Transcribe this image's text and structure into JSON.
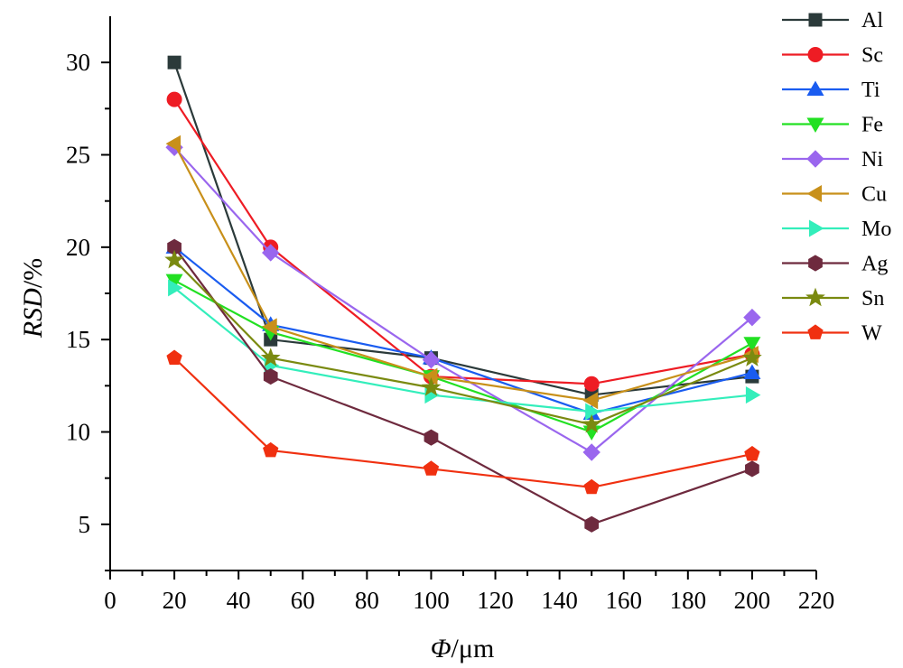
{
  "chart_data": {
    "type": "line",
    "x": [
      20,
      50,
      100,
      150,
      200
    ],
    "xlabel_var": "Φ",
    "xlabel_unit": "/μm",
    "ylabel_var": "RSD",
    "ylabel_unit": "/%",
    "xlim": [
      0,
      220
    ],
    "ylim": [
      2.5,
      32.5
    ],
    "xticks": [
      "0",
      "20",
      "40",
      "60",
      "80",
      "100",
      "120",
      "140",
      "160",
      "180",
      "200",
      "220"
    ],
    "yticks": [
      "5",
      "10",
      "15",
      "20",
      "25",
      "30"
    ],
    "grid": false,
    "legend_position": "top-right",
    "series": [
      {
        "name": "Al",
        "color": "#2b3a3a",
        "marker": "square",
        "values": [
          30,
          15,
          14,
          12,
          13
        ]
      },
      {
        "name": "Sc",
        "color": "#ee1c24",
        "marker": "circle",
        "values": [
          28,
          20,
          13,
          12.6,
          14.2
        ]
      },
      {
        "name": "Ti",
        "color": "#1a5cf0",
        "marker": "triangle-up",
        "values": [
          20,
          15.8,
          14,
          11,
          13.2
        ]
      },
      {
        "name": "Fe",
        "color": "#22e022",
        "marker": "triangle-down",
        "values": [
          18.2,
          15.4,
          13,
          10,
          14.8
        ]
      },
      {
        "name": "Ni",
        "color": "#9a66ee",
        "marker": "diamond",
        "values": [
          25.4,
          19.7,
          13.9,
          8.9,
          16.2
        ]
      },
      {
        "name": "Cu",
        "color": "#c8901a",
        "marker": "triangle-left",
        "values": [
          25.6,
          15.7,
          13,
          11.7,
          14.2
        ]
      },
      {
        "name": "Mo",
        "color": "#33eebb",
        "marker": "triangle-right",
        "values": [
          17.8,
          13.6,
          12,
          11.1,
          12
        ]
      },
      {
        "name": "Ag",
        "color": "#6e2a3e",
        "marker": "hexagon",
        "values": [
          20,
          13,
          9.7,
          5,
          8
        ]
      },
      {
        "name": "Sn",
        "color": "#7a8a10",
        "marker": "star",
        "values": [
          19.3,
          14,
          12.4,
          10.4,
          14
        ]
      },
      {
        "name": "W",
        "color": "#f03010",
        "marker": "pentagon",
        "values": [
          14,
          9,
          8,
          7,
          8.8
        ]
      }
    ]
  }
}
